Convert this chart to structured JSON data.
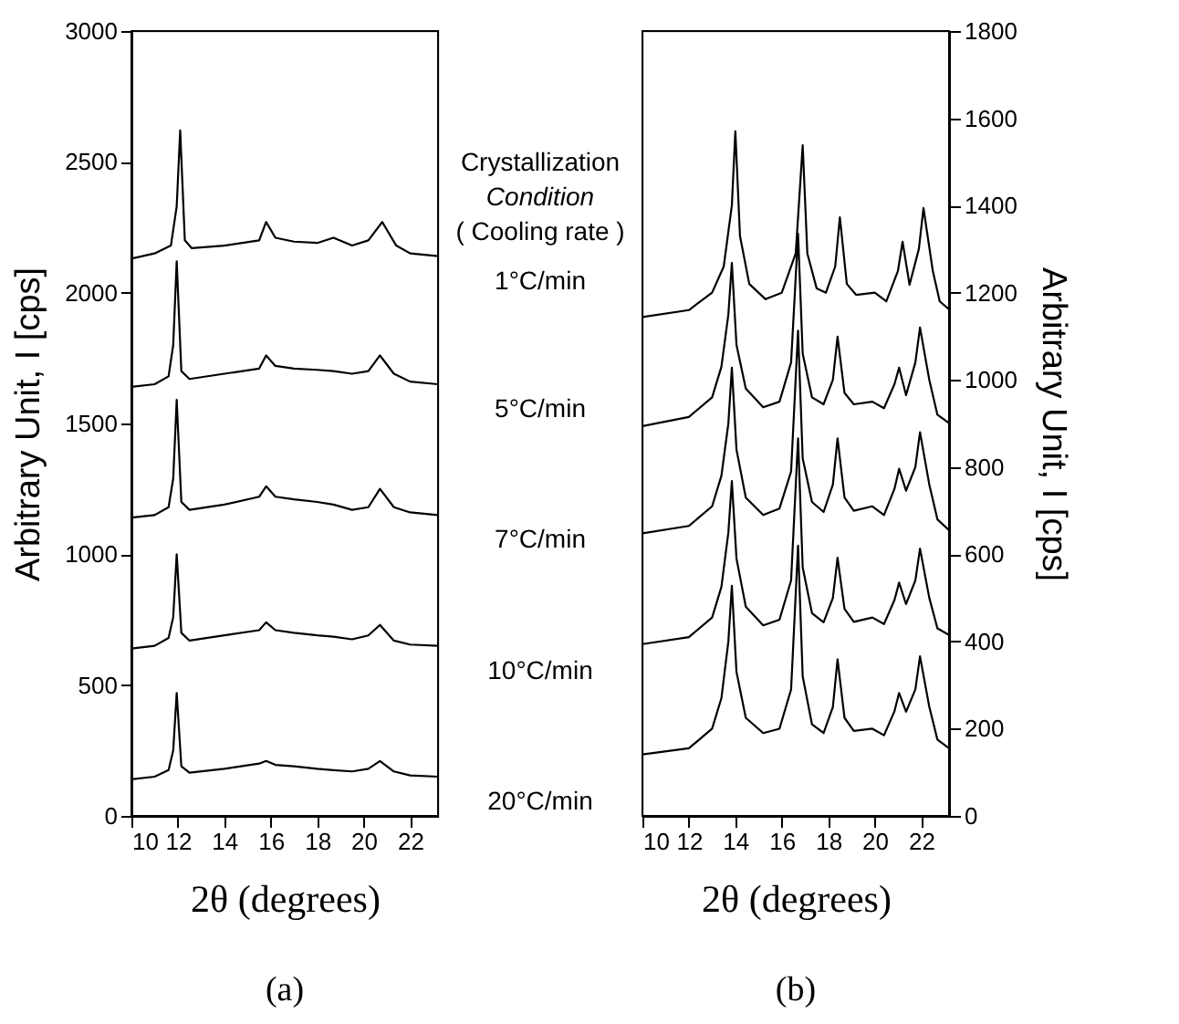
{
  "chart_data": [
    {
      "type": "line",
      "xlabel": "2θ (degrees)",
      "ylabel": "Arbitrary Unit, I [cps]",
      "legend_title": "Crystallization\nCondition\n( Cooling rate )",
      "xlim": [
        10,
        23.2
      ],
      "xticks": [
        10,
        12,
        14,
        16,
        18,
        20,
        22
      ],
      "ylim": [
        0,
        3000
      ],
      "yticks": [
        0,
        500,
        1000,
        1500,
        2000,
        2500,
        3000
      ],
      "grid": false,
      "legend": false,
      "marker": "none",
      "line_style": "solid",
      "annotations": [
        "(a)"
      ],
      "series": [
        {
          "name": "1°C/min",
          "color": "#000000",
          "x": [
            10,
            11,
            11.7,
            11.95,
            12.1,
            12.3,
            12.6,
            14,
            15.5,
            15.8,
            16.2,
            17,
            18,
            18.7,
            19.5,
            20.2,
            20.8,
            21.4,
            22,
            23.2
          ],
          "values": [
            2130,
            2150,
            2180,
            2330,
            2620,
            2200,
            2170,
            2180,
            2200,
            2270,
            2210,
            2195,
            2190,
            2210,
            2180,
            2200,
            2270,
            2180,
            2150,
            2140
          ]
        },
        {
          "name": "5°C/min",
          "color": "#000000",
          "x": [
            10,
            11,
            11.6,
            11.8,
            11.95,
            12.15,
            12.5,
            14,
            15.5,
            15.8,
            16.2,
            17,
            18,
            18.7,
            19.5,
            20.2,
            20.7,
            21.3,
            22,
            23.2
          ],
          "values": [
            1640,
            1650,
            1680,
            1800,
            2120,
            1700,
            1670,
            1690,
            1710,
            1760,
            1720,
            1710,
            1705,
            1700,
            1690,
            1700,
            1760,
            1690,
            1660,
            1650
          ]
        },
        {
          "name": "7°C/min",
          "color": "#000000",
          "x": [
            10,
            11,
            11.6,
            11.8,
            11.95,
            12.15,
            12.5,
            14,
            15.5,
            15.8,
            16.2,
            17,
            18,
            18.7,
            19.5,
            20.2,
            20.7,
            21.3,
            22,
            23.2
          ],
          "values": [
            1140,
            1150,
            1180,
            1290,
            1590,
            1200,
            1170,
            1190,
            1220,
            1260,
            1220,
            1210,
            1200,
            1190,
            1170,
            1180,
            1250,
            1180,
            1160,
            1150
          ]
        },
        {
          "name": "10°C/min",
          "color": "#000000",
          "x": [
            10,
            11,
            11.6,
            11.8,
            11.95,
            12.15,
            12.5,
            14,
            15.5,
            15.8,
            16.2,
            17,
            18,
            18.7,
            19.5,
            20.2,
            20.7,
            21.3,
            22,
            23.2
          ],
          "values": [
            640,
            650,
            680,
            760,
            1000,
            700,
            670,
            690,
            710,
            740,
            710,
            700,
            690,
            685,
            675,
            690,
            730,
            670,
            655,
            650
          ]
        },
        {
          "name": "20°C/min",
          "color": "#000000",
          "x": [
            10,
            11,
            11.6,
            11.8,
            11.95,
            12.15,
            12.5,
            14,
            15.5,
            15.8,
            16.2,
            17,
            18,
            18.7,
            19.5,
            20.2,
            20.7,
            21.3,
            22,
            23.2
          ],
          "values": [
            140,
            150,
            175,
            250,
            470,
            190,
            165,
            180,
            200,
            210,
            195,
            190,
            180,
            175,
            170,
            180,
            210,
            170,
            155,
            150
          ]
        }
      ]
    },
    {
      "type": "line",
      "xlabel": "2θ (degrees)",
      "y2label": "Arbitrary Unit, I [cps]",
      "xlim": [
        10,
        23.2
      ],
      "xticks": [
        10,
        12,
        14,
        16,
        18,
        20,
        22
      ],
      "y2lim": [
        0,
        1800
      ],
      "y2ticks": [
        0,
        200,
        400,
        600,
        800,
        1000,
        1200,
        1400,
        1600,
        1800
      ],
      "grid": false,
      "legend": false,
      "marker": "none",
      "line_style": "solid",
      "annotations": [
        "(b)"
      ],
      "series": [
        {
          "axis": "y2",
          "color": "#000000",
          "x": [
            10,
            12,
            13,
            13.5,
            13.85,
            14.0,
            14.2,
            14.6,
            15.3,
            16.0,
            16.6,
            16.9,
            17.1,
            17.5,
            17.9,
            18.3,
            18.5,
            18.8,
            19.2,
            20.0,
            20.5,
            21.0,
            21.2,
            21.5,
            21.9,
            22.1,
            22.5,
            22.8,
            23.2
          ],
          "values": [
            1144,
            1160,
            1200,
            1260,
            1400,
            1570,
            1330,
            1220,
            1185,
            1200,
            1290,
            1538,
            1290,
            1210,
            1200,
            1260,
            1373,
            1220,
            1195,
            1200,
            1180,
            1250,
            1317,
            1218,
            1300,
            1394,
            1250,
            1180,
            1162
          ]
        },
        {
          "axis": "y2",
          "color": "#000000",
          "x": [
            10,
            12,
            13,
            13.4,
            13.7,
            13.85,
            14.05,
            14.45,
            15.2,
            15.9,
            16.4,
            16.7,
            16.9,
            17.3,
            17.8,
            18.2,
            18.4,
            18.7,
            19.1,
            19.9,
            20.4,
            20.85,
            21.05,
            21.35,
            21.75,
            21.95,
            22.35,
            22.7,
            23.2
          ],
          "values": [
            894,
            915,
            960,
            1030,
            1150,
            1268,
            1080,
            980,
            937,
            950,
            1040,
            1335,
            1060,
            960,
            944,
            1000,
            1099,
            970,
            944,
            950,
            935,
            990,
            1028,
            965,
            1040,
            1120,
            1000,
            920,
            901
          ]
        },
        {
          "axis": "y2",
          "color": "#000000",
          "x": [
            10,
            12,
            13,
            13.4,
            13.7,
            13.85,
            14.05,
            14.45,
            15.2,
            15.9,
            16.4,
            16.7,
            16.9,
            17.3,
            17.8,
            18.2,
            18.4,
            18.7,
            19.1,
            19.9,
            20.4,
            20.85,
            21.05,
            21.35,
            21.75,
            21.95,
            22.35,
            22.7,
            23.2
          ],
          "values": [
            648,
            665,
            710,
            780,
            900,
            1028,
            840,
            730,
            690,
            705,
            790,
            1113,
            820,
            720,
            697,
            760,
            866,
            730,
            700,
            710,
            690,
            750,
            796,
            746,
            800,
            880,
            760,
            680,
            655
          ]
        },
        {
          "axis": "y2",
          "color": "#000000",
          "x": [
            10,
            12,
            13,
            13.4,
            13.7,
            13.85,
            14.05,
            14.45,
            15.2,
            15.9,
            16.4,
            16.7,
            16.9,
            17.3,
            17.8,
            18.2,
            18.4,
            18.7,
            19.1,
            19.9,
            20.4,
            20.85,
            21.05,
            21.35,
            21.75,
            21.95,
            22.35,
            22.7,
            23.2
          ],
          "values": [
            394,
            410,
            455,
            525,
            650,
            768,
            590,
            480,
            437,
            450,
            540,
            866,
            570,
            465,
            444,
            500,
            592,
            475,
            445,
            455,
            440,
            495,
            535,
            486,
            540,
            613,
            500,
            430,
            415
          ]
        },
        {
          "axis": "y2",
          "color": "#000000",
          "x": [
            10,
            12,
            13,
            13.4,
            13.7,
            13.85,
            14.05,
            14.45,
            15.2,
            15.9,
            16.4,
            16.7,
            16.9,
            17.3,
            17.8,
            18.2,
            18.4,
            18.7,
            19.1,
            19.9,
            20.4,
            20.85,
            21.05,
            21.35,
            21.75,
            21.95,
            22.35,
            22.7,
            23.2
          ],
          "values": [
            141,
            155,
            200,
            270,
            400,
            528,
            330,
            225,
            190,
            200,
            290,
            620,
            320,
            210,
            190,
            250,
            359,
            225,
            195,
            200,
            185,
            240,
            282,
            239,
            290,
            366,
            250,
            175,
            155
          ]
        }
      ]
    }
  ]
}
